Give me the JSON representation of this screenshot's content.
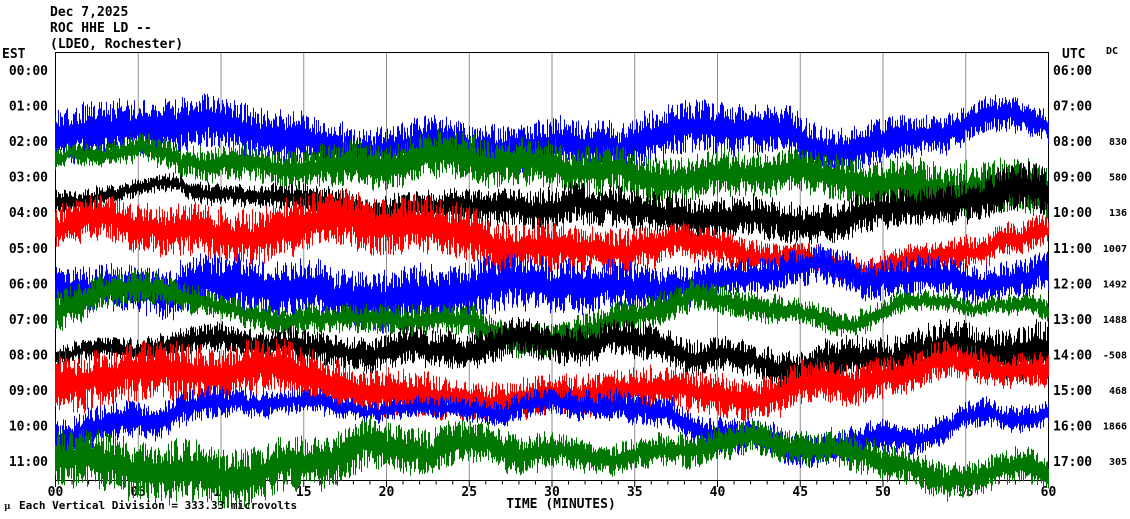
{
  "header": {
    "date": "Dec 7,2025",
    "station_line": "ROC HHE LD --",
    "location_line": "(LDEO, Rochester)"
  },
  "left_axis": {
    "title": "EST"
  },
  "right_axis": {
    "title": "UTC"
  },
  "dc_column": {
    "title": "DC"
  },
  "x_axis": {
    "title": "TIME (MINUTES)",
    "tick_labels": [
      "00",
      "05",
      "10",
      "15",
      "20",
      "25",
      "30",
      "35",
      "40",
      "45",
      "50",
      "55",
      "60"
    ],
    "minor_tick_every_minutes": 1,
    "major_tick_every_minutes": 5
  },
  "footer": {
    "scale_note": "Each Vertical Division = 333.33 microvolts",
    "corner_mark": "μ"
  },
  "colors": {
    "background": "#ffffff",
    "border": "#000000",
    "grid": "#8f8f8f",
    "text": "#000000",
    "trace_black": "#000000",
    "trace_red": "#ff0000",
    "trace_blue": "#0000ff",
    "trace_green": "#007700"
  },
  "chart_data": {
    "type": "line",
    "subtype": "helicorder-seismogram",
    "title": "ROC HHE LD -- (LDEO, Rochester) Dec 7,2025",
    "xlabel": "TIME (MINUTES)",
    "x_range_minutes": [
      0,
      60
    ],
    "x_tick_interval_minutes": 5,
    "grid": true,
    "minutes_per_line": 60,
    "scale_note": "Each Vertical Division = 333.33 microvolts",
    "rows": [
      {
        "est": "00:00",
        "utc": "06:00",
        "dc": null,
        "trace_color": null
      },
      {
        "est": "01:00",
        "utc": "07:00",
        "dc": null,
        "trace_color": null
      },
      {
        "est": "02:00",
        "utc": "08:00",
        "dc": 830,
        "trace_color": "#0000ff"
      },
      {
        "est": "03:00",
        "utc": "09:00",
        "dc": 580,
        "trace_color": "#007700"
      },
      {
        "est": "04:00",
        "utc": "10:00",
        "dc": 136,
        "trace_color": "#000000"
      },
      {
        "est": "05:00",
        "utc": "11:00",
        "dc": 1007,
        "trace_color": "#ff0000"
      },
      {
        "est": "06:00",
        "utc": "12:00",
        "dc": 1492,
        "trace_color": "#0000ff"
      },
      {
        "est": "07:00",
        "utc": "13:00",
        "dc": 1488,
        "trace_color": "#007700"
      },
      {
        "est": "08:00",
        "utc": "14:00",
        "dc": -508,
        "trace_color": "#000000"
      },
      {
        "est": "09:00",
        "utc": "15:00",
        "dc": 468,
        "trace_color": "#ff0000"
      },
      {
        "est": "10:00",
        "utc": "16:00",
        "dc": 1866,
        "trace_color": "#0000ff"
      },
      {
        "est": "11:00",
        "utc": "17:00",
        "dc": 305,
        "trace_color": "#007700"
      }
    ]
  }
}
